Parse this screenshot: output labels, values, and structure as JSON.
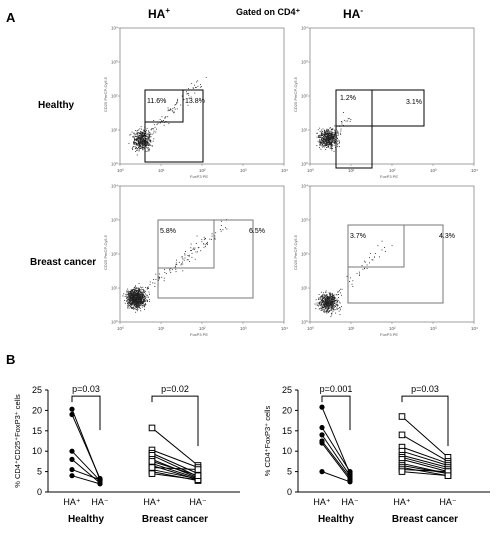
{
  "panel_a_label": "A",
  "panel_b_label": "B",
  "column_headers": {
    "left": "HA",
    "left_sup": "+",
    "right": "HA",
    "right_sup": "-"
  },
  "gated_label": "Gated on CD4⁺",
  "row_labels": {
    "healthy": "Healthy",
    "breast_cancer": "Breast cancer"
  },
  "flow_axes": {
    "x_label": "FoxP3 PE",
    "y_label": "CD25 PerCP-Cy5.5",
    "ticks": [
      "10⁰",
      "10¹",
      "10²",
      "10³",
      "10⁴"
    ]
  },
  "flow_plots": [
    {
      "name": "healthy-ha-plus",
      "gate_inner": "11.6%",
      "gate_outer": "13.8%"
    },
    {
      "name": "healthy-ha-minus",
      "gate_inner": "1.2%",
      "gate_outer": "3.1%"
    },
    {
      "name": "bc-ha-plus",
      "gate_inner": "5.8%",
      "gate_outer": "6.5%"
    },
    {
      "name": "bc-ha-minus",
      "gate_inner": "3.7%",
      "gate_outer": "4.3%"
    }
  ],
  "chart_data": [
    {
      "type": "line",
      "ylabel": "% CD4⁺CD25⁺FoxP3⁺ cells",
      "ylim": [
        0,
        25
      ],
      "yticks": [
        0,
        5,
        10,
        15,
        20,
        25
      ],
      "groups": [
        {
          "name": "Healthy",
          "x_labels": [
            "HA⁺",
            "HA⁻"
          ],
          "p_value": "p=0.03",
          "marker": "filled-circle",
          "pairs": [
            [
              20.3,
              3.0
            ],
            [
              19.0,
              3.3
            ],
            [
              10.0,
              2.8
            ],
            [
              8.0,
              2.2
            ],
            [
              5.5,
              3.0
            ],
            [
              4.0,
              2.0
            ]
          ]
        },
        {
          "name": "Breast cancer",
          "x_labels": [
            "HA⁺",
            "HA⁻"
          ],
          "p_value": "p=0.02",
          "marker": "open-square",
          "pairs": [
            [
              15.7,
              6.5
            ],
            [
              10.3,
              6.0
            ],
            [
              9.5,
              4.5
            ],
            [
              9.0,
              3.8
            ],
            [
              8.0,
              3.5
            ],
            [
              7.0,
              3.3
            ],
            [
              6.5,
              3.0
            ],
            [
              5.5,
              3.2
            ],
            [
              5.0,
              2.8
            ],
            [
              4.5,
              3.0
            ],
            [
              7.5,
              4.0
            ],
            [
              6.0,
              5.5
            ]
          ]
        }
      ]
    },
    {
      "type": "line",
      "ylabel": "% CD4⁺FoxP3⁺ cells",
      "ylim": [
        0,
        25
      ],
      "yticks": [
        0,
        5,
        10,
        15,
        20,
        25
      ],
      "groups": [
        {
          "name": "Healthy",
          "x_labels": [
            "HA⁺",
            "HA⁻"
          ],
          "p_value": "p=0.001",
          "marker": "filled-circle",
          "pairs": [
            [
              20.8,
              4.5
            ],
            [
              15.8,
              5.0
            ],
            [
              14.0,
              4.0
            ],
            [
              12.5,
              3.5
            ],
            [
              12.0,
              3.0
            ],
            [
              5.0,
              2.5
            ]
          ]
        },
        {
          "name": "Breast cancer",
          "x_labels": [
            "HA⁺",
            "HA⁻"
          ],
          "p_value": "p=0.03",
          "marker": "open-square",
          "pairs": [
            [
              18.5,
              8.5
            ],
            [
              14.0,
              7.5
            ],
            [
              11.0,
              7.0
            ],
            [
              10.0,
              6.5
            ],
            [
              9.0,
              6.0
            ],
            [
              8.5,
              5.5
            ],
            [
              8.0,
              5.0
            ],
            [
              7.0,
              4.5
            ],
            [
              6.5,
              4.5
            ],
            [
              6.0,
              4.0
            ],
            [
              5.5,
              5.0
            ],
            [
              5.0,
              4.0
            ]
          ]
        }
      ]
    }
  ]
}
